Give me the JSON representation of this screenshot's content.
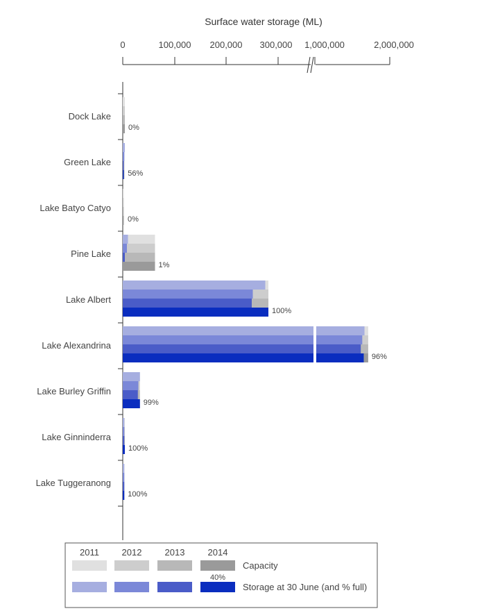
{
  "chart_data": {
    "type": "bar",
    "orientation": "horizontal",
    "xlabel": "Surface water storage (ML)",
    "x_ticks": [
      "0",
      "100,000",
      "200,000",
      "300,000",
      "1,000,000",
      "2,000,000"
    ],
    "axis_break": "broken scale between 300,000 and 1,000,000",
    "categories": [
      "Dock Lake",
      "Green Lake",
      "Lake Batyo Catyo",
      "Pine Lake",
      "Lake Albert",
      "Lake Alexandrina",
      "Lake Burley Griffin",
      "Lake Ginninderra",
      "Lake Tuggeranong"
    ],
    "percent_full_labels": [
      "0%",
      "56%",
      "0%",
      "1%",
      "100%",
      "96%",
      "99%",
      "100%",
      "100%"
    ],
    "capacity": [
      4000,
      3000,
      1000,
      62000,
      280000,
      1700000,
      33000,
      4000,
      3000
    ],
    "storage": {
      "2011": [
        0,
        4000,
        0,
        10000,
        274000,
        1650000,
        33000,
        3000,
        3000
      ],
      "2012": [
        0,
        3000,
        0,
        8000,
        250000,
        1620000,
        30000,
        3000,
        3000
      ],
      "2013": [
        0,
        2000,
        0,
        4000,
        248000,
        1600000,
        29000,
        3000,
        3000
      ],
      "2014": [
        0,
        2000,
        0,
        0,
        280000,
        1640000,
        33000,
        4000,
        3000
      ]
    },
    "capacity_years": [
      "2011",
      "2012",
      "2013",
      "2014"
    ],
    "legend": {
      "years": [
        "2011",
        "2012",
        "2013",
        "2014"
      ],
      "capacity_label": "Capacity",
      "storage_label": "Storage at 30 June (and % full)",
      "note": "40%"
    },
    "colors": {
      "capacity": [
        "#e0e0e0",
        "#cdcdcd",
        "#b8b8b8",
        "#9a9a9a"
      ],
      "storage": [
        "#a6aee0",
        "#7b88d8",
        "#4a5cc8",
        "#0a2dbf"
      ],
      "axis": "#333333",
      "text": "#444444"
    }
  }
}
